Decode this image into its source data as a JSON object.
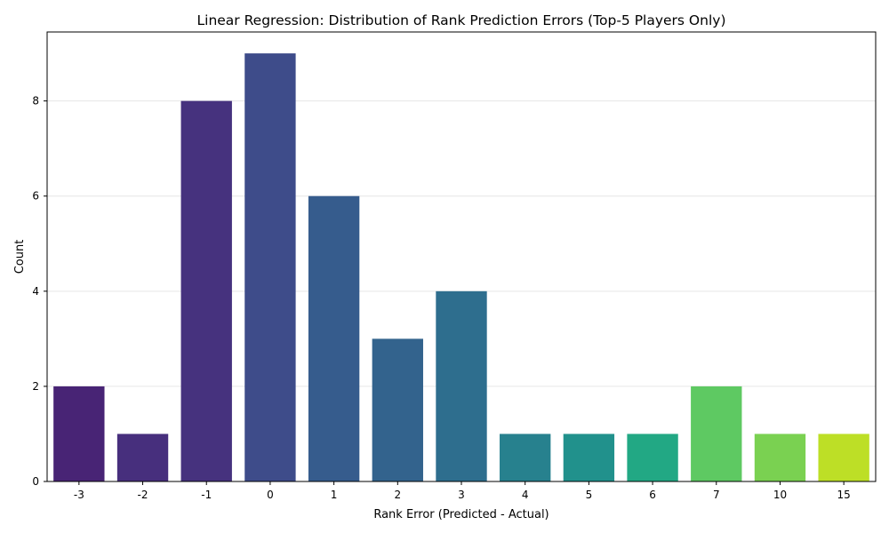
{
  "chart_data": {
    "type": "bar",
    "title": "Linear Regression: Distribution of Rank Prediction Errors (Top-5 Players Only)",
    "xlabel": "Rank Error (Predicted - Actual)",
    "ylabel": "Count",
    "categories": [
      "-3",
      "-2",
      "-1",
      "0",
      "1",
      "2",
      "3",
      "4",
      "5",
      "6",
      "7",
      "10",
      "15"
    ],
    "values": [
      2,
      1,
      8,
      9,
      6,
      3,
      4,
      1,
      1,
      1,
      2,
      1,
      1
    ],
    "colors": [
      "#482475",
      "#472f7d",
      "#46327e",
      "#3e4c8a",
      "#365c8d",
      "#33638d",
      "#2e6e8e",
      "#27818e",
      "#21918c",
      "#22a884",
      "#5ec962",
      "#7ad151",
      "#bddf26"
    ],
    "ylim": [
      0,
      9.45
    ],
    "yticks": [
      0,
      2,
      4,
      6,
      8
    ],
    "grid": "y"
  }
}
